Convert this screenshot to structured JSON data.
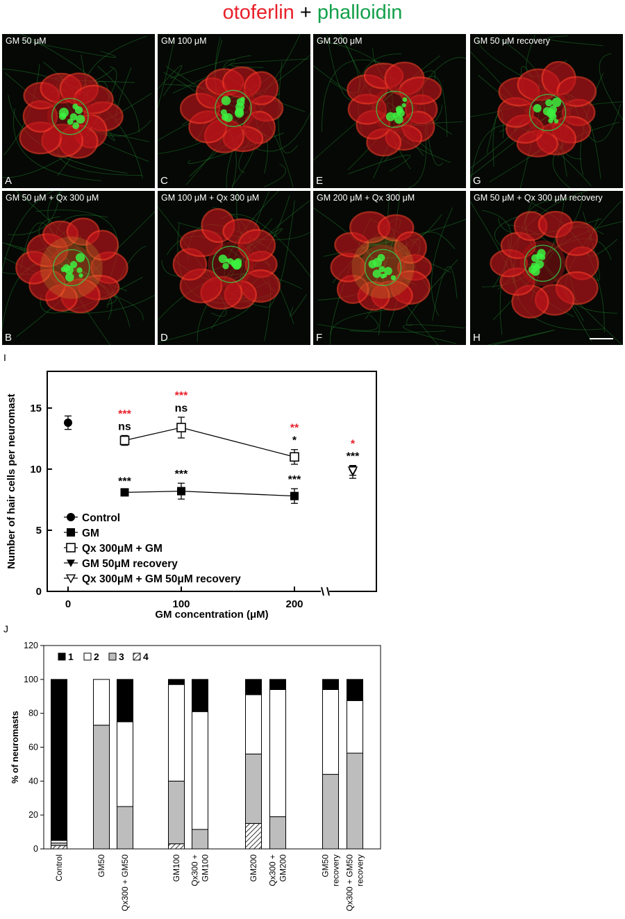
{
  "figure_title": {
    "part1": "otoferlin",
    "plus": "+",
    "part2": "phalloidin"
  },
  "colors": {
    "red_stain": "#e8202a",
    "green_stain": "#12a04a",
    "sig_red": "#e8202a",
    "sig_black": "#000000"
  },
  "panels": [
    {
      "id": "A",
      "condition": "GM 50 μM"
    },
    {
      "id": "C",
      "condition": "GM 100 μM"
    },
    {
      "id": "E",
      "condition": "GM 200 μM"
    },
    {
      "id": "G",
      "condition": "GM 50 μM recovery"
    },
    {
      "id": "B",
      "condition": "GM 50 μM + Qx 300 μM"
    },
    {
      "id": "D",
      "condition": "GM 100 μM + Qx 300 μM"
    },
    {
      "id": "F",
      "condition": "GM 200 μM + Qx 300 μM"
    },
    {
      "id": "H",
      "condition": "GM 50 μM + Qx 300 μM recovery"
    }
  ],
  "panel_I_label": "I",
  "panel_J_label": "J",
  "chart_data": [
    {
      "type": "scatter",
      "panel": "I",
      "xlabel": "GM concentration (μM)",
      "ylabel": "Number of hair cells per neuromast",
      "xlim": [
        0,
        250
      ],
      "ylim": [
        0,
        18
      ],
      "xticks": [
        "0",
        "100",
        "200"
      ],
      "yticks": [
        "0",
        "5",
        "10",
        "15"
      ],
      "legend_position": "bottom-left",
      "series": [
        {
          "name": "Control",
          "marker": "filled-circle",
          "points": [
            {
              "x": 0,
              "y": 13.8,
              "err": 0.55
            }
          ]
        },
        {
          "name": "GM",
          "marker": "filled-square",
          "connected": true,
          "points": [
            {
              "x": 50,
              "y": 8.1,
              "err": 0.15,
              "sig_black": "***",
              "sig_red": ""
            },
            {
              "x": 100,
              "y": 8.2,
              "err": 0.65,
              "sig_black": "***",
              "sig_red": ""
            },
            {
              "x": 200,
              "y": 7.8,
              "err": 0.6,
              "sig_black": "***",
              "sig_red": ""
            }
          ]
        },
        {
          "name": "Qx 300μM + GM",
          "marker": "open-square",
          "connected": true,
          "points": [
            {
              "x": 50,
              "y": 12.35,
              "err": 0.4,
              "sig_black": "ns",
              "sig_red": "***"
            },
            {
              "x": 100,
              "y": 13.4,
              "err": 0.85,
              "sig_black": "ns",
              "sig_red": "***"
            },
            {
              "x": 200,
              "y": 11.0,
              "err": 0.6,
              "sig_black": "*",
              "sig_red": "**"
            }
          ]
        },
        {
          "name": "GM 50μM recovery",
          "marker": "filled-triangle-down",
          "points": [
            {
              "x": "recovery",
              "y": 9.75,
              "err": 0.5
            }
          ]
        },
        {
          "name": "Qx 300μM + GM 50μM recovery",
          "marker": "open-triangle-down",
          "points": [
            {
              "x": "recovery",
              "y": 9.9,
              "err": 0.4,
              "sig_black": "***",
              "sig_red": "*"
            }
          ]
        }
      ]
    },
    {
      "type": "bar",
      "stacked": true,
      "panel": "J",
      "ylabel": "% of neuromasts",
      "ylim": [
        0,
        120
      ],
      "yticks": [
        "0",
        "20",
        "40",
        "60",
        "80",
        "100",
        "120"
      ],
      "legend_position": "top-left",
      "legend": [
        "1",
        "2",
        "3",
        "4"
      ],
      "categories": [
        "Control",
        "GM50",
        "Qx300 + GM50",
        "GM100",
        "Qx300 + GM100",
        "GM200",
        "Qx300 + GM200",
        "GM50 recovery",
        "Qx300 + GM50 recovery"
      ],
      "series": [
        {
          "name": "4",
          "fill": "hatch",
          "values": [
            2,
            0,
            0,
            3,
            0,
            15,
            0,
            0,
            0
          ]
        },
        {
          "name": "3",
          "fill": "#bdbdbd",
          "values": [
            1.5,
            73,
            25,
            37,
            11.5,
            41,
            19,
            44,
            56.5
          ]
        },
        {
          "name": "2",
          "fill": "#ffffff",
          "values": [
            1.5,
            27,
            50,
            57,
            69.5,
            35,
            75,
            50,
            31
          ]
        },
        {
          "name": "1",
          "fill": "#000000",
          "values": [
            95,
            0,
            25,
            3,
            19,
            9,
            6,
            6,
            12.5
          ]
        }
      ]
    }
  ]
}
